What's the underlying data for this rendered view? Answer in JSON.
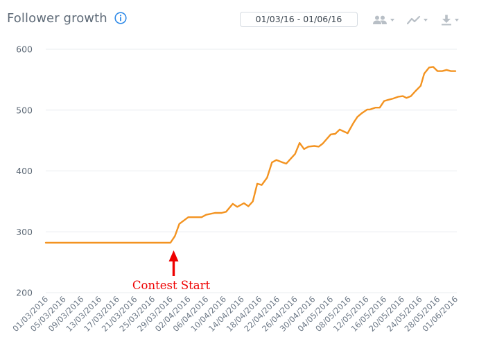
{
  "header": {
    "title": "Follower growth",
    "info_icon": "info-circle-icon",
    "date_range": "01/03/16 - 01/06/16",
    "tools": [
      {
        "icon": "users-icon",
        "label": "Audience menu"
      },
      {
        "icon": "line-chart-icon",
        "label": "Chart type menu"
      },
      {
        "icon": "download-icon",
        "label": "Export menu"
      }
    ]
  },
  "colors": {
    "line": "#f39320",
    "grid": "#e8ecef",
    "annotation": "#ee0000",
    "info": "#2f8ae8",
    "icon": "#b8bfc6"
  },
  "annotation": {
    "label": "Contest Start",
    "x_date": "29/03/2016"
  },
  "chart_data": {
    "type": "line",
    "title": "Follower growth",
    "xlabel": "",
    "ylabel": "",
    "ylim": [
      200,
      600
    ],
    "yticks": [
      200,
      300,
      400,
      500,
      600
    ],
    "grid": true,
    "legend": null,
    "xticks": [
      "01/03/2016",
      "05/03/2016",
      "09/03/2016",
      "13/03/2016",
      "17/03/2016",
      "21/03/2016",
      "25/03/2016",
      "29/03/2016",
      "02/04/2016",
      "06/04/2016",
      "10/04/2016",
      "14/04/2016",
      "18/04/2016",
      "22/04/2016",
      "26/04/2016",
      "30/04/2016",
      "04/05/2016",
      "08/05/2016",
      "12/05/2016",
      "16/05/2016",
      "20/05/2016",
      "24/05/2016",
      "28/05/2016",
      "01/06/2016"
    ],
    "annotations": [
      {
        "text": "Contest Start",
        "x": "29/03/2016",
        "style": "red arrow pointing up"
      }
    ],
    "series": [
      {
        "name": "Followers",
        "points": [
          {
            "day": 0,
            "value": 282
          },
          {
            "day": 28,
            "value": 282
          },
          {
            "day": 29,
            "value": 293
          },
          {
            "day": 30,
            "value": 313
          },
          {
            "day": 32,
            "value": 324
          },
          {
            "day": 35,
            "value": 324
          },
          {
            "day": 36,
            "value": 328
          },
          {
            "day": 38,
            "value": 331
          },
          {
            "day": 39.5,
            "value": 331
          },
          {
            "day": 40.5,
            "value": 333
          },
          {
            "day": 42,
            "value": 346
          },
          {
            "day": 43,
            "value": 341
          },
          {
            "day": 44.5,
            "value": 347
          },
          {
            "day": 45.5,
            "value": 342
          },
          {
            "day": 46.5,
            "value": 350
          },
          {
            "day": 47.5,
            "value": 379
          },
          {
            "day": 48.5,
            "value": 377
          },
          {
            "day": 49.7,
            "value": 389
          },
          {
            "day": 50.8,
            "value": 414
          },
          {
            "day": 51.8,
            "value": 418
          },
          {
            "day": 53.2,
            "value": 414
          },
          {
            "day": 54,
            "value": 412
          },
          {
            "day": 55,
            "value": 420
          },
          {
            "day": 56,
            "value": 428
          },
          {
            "day": 57,
            "value": 446
          },
          {
            "day": 58,
            "value": 436
          },
          {
            "day": 59,
            "value": 440
          },
          {
            "day": 60.3,
            "value": 441
          },
          {
            "day": 61.3,
            "value": 440
          },
          {
            "day": 62.2,
            "value": 445
          },
          {
            "day": 64,
            "value": 460
          },
          {
            "day": 65,
            "value": 461
          },
          {
            "day": 66,
            "value": 468
          },
          {
            "day": 67.8,
            "value": 462
          },
          {
            "day": 69.1,
            "value": 479
          },
          {
            "day": 70,
            "value": 489
          },
          {
            "day": 71,
            "value": 495
          },
          {
            "day": 72.2,
            "value": 501
          },
          {
            "day": 72.8,
            "value": 501
          },
          {
            "day": 74,
            "value": 504
          },
          {
            "day": 75,
            "value": 504
          },
          {
            "day": 76,
            "value": 515
          },
          {
            "day": 77,
            "value": 517
          },
          {
            "day": 78,
            "value": 519
          },
          {
            "day": 79.2,
            "value": 522
          },
          {
            "day": 80.2,
            "value": 523
          },
          {
            "day": 81,
            "value": 520
          },
          {
            "day": 82,
            "value": 523
          },
          {
            "day": 83,
            "value": 531
          },
          {
            "day": 84.2,
            "value": 540
          },
          {
            "day": 85,
            "value": 560
          },
          {
            "day": 86.1,
            "value": 570
          },
          {
            "day": 87,
            "value": 571
          },
          {
            "day": 88,
            "value": 564
          },
          {
            "day": 89,
            "value": 564
          },
          {
            "day": 90,
            "value": 566
          },
          {
            "day": 91,
            "value": 564
          },
          {
            "day": 92,
            "value": 564
          }
        ]
      }
    ]
  }
}
